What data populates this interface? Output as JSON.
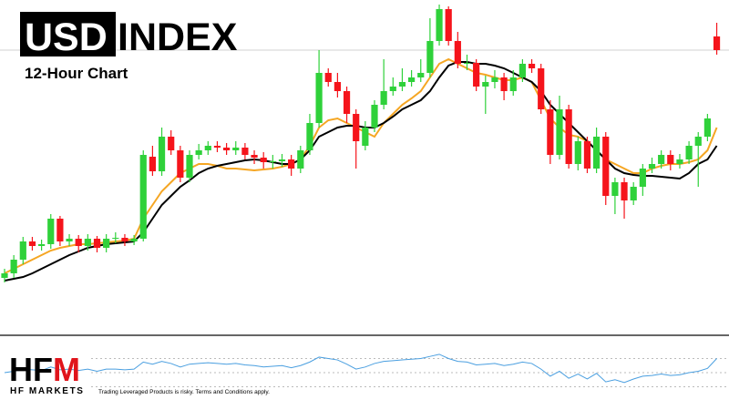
{
  "header": {
    "badge": "USD",
    "title": "INDEX",
    "subtitle": "12-Hour Chart"
  },
  "footer": {
    "logo": [
      "HF",
      "M"
    ],
    "brand": "HF MARKETS",
    "disclaimer": "Trading Leveraged Products is risky. Terms and Conditions apply."
  },
  "chart_data": [
    {
      "type": "candlestick",
      "ylim": [
        0,
        365
      ],
      "up_color": "#2fd13a",
      "down_color": "#f5141b",
      "open": [
        60,
        65,
        80,
        100,
        95,
        97,
        125,
        100,
        103,
        95,
        103,
        93,
        103,
        104,
        100,
        103,
        193,
        177,
        215,
        200,
        170,
        195,
        200,
        205,
        203,
        200,
        203,
        195,
        192,
        187,
        188,
        190,
        180,
        200,
        230,
        285,
        275,
        265,
        240,
        205,
        225,
        250,
        265,
        270,
        275,
        280,
        285,
        320,
        355,
        320,
        295,
        296,
        270,
        275,
        280,
        265,
        280,
        295,
        290,
        245,
        195,
        245,
        185,
        210,
        180,
        215,
        150,
        165,
        145,
        160,
        180,
        185,
        195,
        185,
        190,
        205,
        215,
        325
      ],
      "close": [
        65,
        80,
        100,
        95,
        97,
        125,
        100,
        103,
        95,
        103,
        93,
        103,
        104,
        100,
        103,
        195,
        177,
        215,
        200,
        170,
        195,
        200,
        205,
        203,
        200,
        203,
        195,
        192,
        187,
        188,
        190,
        180,
        200,
        230,
        285,
        275,
        265,
        240,
        210,
        225,
        250,
        265,
        270,
        275,
        280,
        285,
        320,
        355,
        320,
        295,
        296,
        270,
        275,
        280,
        265,
        280,
        295,
        290,
        245,
        195,
        245,
        185,
        210,
        180,
        215,
        150,
        165,
        145,
        160,
        180,
        185,
        195,
        185,
        190,
        205,
        215,
        235,
        310
      ],
      "high": [
        70,
        85,
        105,
        105,
        102,
        130,
        128,
        108,
        107,
        108,
        106,
        108,
        110,
        108,
        107,
        200,
        205,
        225,
        222,
        205,
        200,
        207,
        210,
        210,
        208,
        210,
        208,
        200,
        198,
        195,
        196,
        195,
        205,
        240,
        310,
        290,
        285,
        270,
        245,
        232,
        255,
        300,
        280,
        290,
        288,
        300,
        345,
        360,
        358,
        330,
        305,
        300,
        282,
        288,
        285,
        288,
        300,
        300,
        295,
        255,
        260,
        250,
        215,
        215,
        225,
        220,
        170,
        170,
        165,
        185,
        192,
        200,
        200,
        196,
        210,
        220,
        240,
        340
      ],
      "low": [
        55,
        60,
        75,
        90,
        90,
        92,
        95,
        95,
        88,
        90,
        88,
        88,
        98,
        95,
        96,
        100,
        172,
        172,
        195,
        165,
        165,
        190,
        195,
        198,
        195,
        195,
        190,
        185,
        180,
        180,
        182,
        172,
        175,
        195,
        225,
        270,
        258,
        230,
        180,
        200,
        220,
        245,
        260,
        265,
        270,
        275,
        280,
        315,
        315,
        290,
        288,
        265,
        240,
        268,
        255,
        260,
        275,
        285,
        240,
        185,
        190,
        180,
        178,
        175,
        175,
        140,
        130,
        125,
        140,
        150,
        175,
        180,
        178,
        180,
        185,
        160,
        210,
        305
      ],
      "overlays": [
        {
          "color": "#f5a623",
          "values": [
            65,
            70,
            75,
            80,
            85,
            90,
            93,
            95,
            97,
            97,
            98,
            99,
            100,
            101,
            103,
            125,
            140,
            155,
            165,
            175,
            180,
            185,
            185,
            183,
            180,
            180,
            179,
            178,
            179,
            180,
            182,
            185,
            190,
            205,
            225,
            233,
            235,
            230,
            225,
            220,
            215,
            230,
            240,
            250,
            257,
            265,
            280,
            295,
            300,
            295,
            290,
            285,
            283,
            280,
            277,
            277,
            280,
            275,
            255,
            235,
            225,
            217,
            215,
            210,
            200,
            190,
            185,
            180,
            175,
            175,
            180,
            183,
            185,
            185,
            187,
            190,
            200,
            225
          ]
        },
        {
          "color": "#000000",
          "values": [
            57,
            59,
            61,
            65,
            70,
            75,
            80,
            85,
            89,
            93,
            95,
            97,
            98,
            99,
            100,
            110,
            125,
            140,
            150,
            160,
            167,
            175,
            180,
            183,
            185,
            187,
            189,
            190,
            189,
            187,
            185,
            185,
            190,
            200,
            215,
            220,
            225,
            227,
            227,
            225,
            225,
            230,
            237,
            245,
            250,
            255,
            265,
            280,
            293,
            297,
            297,
            295,
            295,
            293,
            290,
            285,
            280,
            275,
            265,
            250,
            240,
            230,
            220,
            210,
            200,
            190,
            180,
            175,
            173,
            172,
            172,
            171,
            170,
            169,
            175,
            185,
            190,
            205
          ]
        }
      ]
    },
    {
      "type": "line",
      "color": "#4a9fe0",
      "ylim": [
        10,
        90
      ],
      "yticks": [
        30,
        50,
        70
      ],
      "grid": true,
      "values": [
        50,
        52,
        55,
        54,
        53,
        58,
        54,
        55,
        53,
        55,
        52,
        55,
        55,
        54,
        55,
        65,
        62,
        66,
        63,
        58,
        62,
        63,
        64,
        63,
        62,
        63,
        61,
        60,
        58,
        59,
        60,
        57,
        60,
        65,
        72,
        70,
        68,
        62,
        55,
        58,
        63,
        66,
        67,
        68,
        69,
        70,
        73,
        76,
        70,
        66,
        65,
        61,
        62,
        63,
        60,
        62,
        65,
        63,
        55,
        45,
        52,
        42,
        48,
        41,
        49,
        37,
        40,
        36,
        41,
        45,
        46,
        48,
        46,
        47,
        50,
        52,
        56,
        70
      ]
    }
  ]
}
